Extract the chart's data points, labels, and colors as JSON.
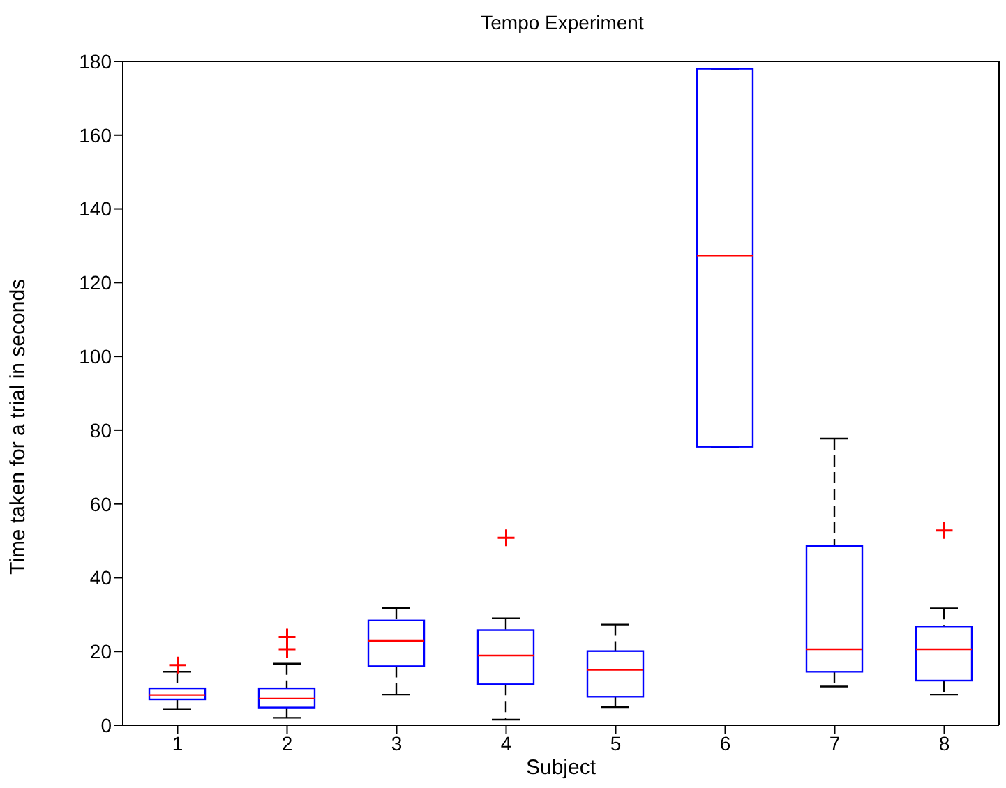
{
  "chart_data": {
    "type": "box",
    "title": "Tempo Experiment",
    "xlabel": "Subject",
    "ylabel": "Time taken for a trial in seconds",
    "categories": [
      "1",
      "2",
      "3",
      "4",
      "5",
      "6",
      "7",
      "8"
    ],
    "color": "#0000ff",
    "line_style": "dashed",
    "marker": "cross",
    "ylim": [
      0,
      180
    ],
    "yticks": [
      0,
      20,
      40,
      60,
      80,
      100,
      120,
      140,
      160,
      180
    ],
    "grid": false,
    "legend": false,
    "boxes": [
      {
        "low": 4.4,
        "q1": 7,
        "median": 8.2,
        "q3": 10,
        "high": 14.5,
        "outliers": [
          16.3
        ]
      },
      {
        "low": 2,
        "q1": 4.8,
        "median": 7.2,
        "q3": 10,
        "high": 16.7,
        "outliers": [
          20.6,
          23.9
        ]
      },
      {
        "low": 8.3,
        "q1": 16,
        "median": 22.9,
        "q3": 28.4,
        "high": 31.8
      },
      {
        "low": 1.5,
        "q1": 11.1,
        "median": 18.9,
        "q3": 25.8,
        "high": 29,
        "outliers": [
          50.8
        ]
      },
      {
        "low": 4.9,
        "q1": 7.7,
        "median": 15,
        "q3": 20.1,
        "high": 27.3
      },
      {
        "low": 75.5,
        "q1": 75.5,
        "median": 127.4,
        "q3": 178,
        "high": 178
      },
      {
        "low": 10.5,
        "q1": 14.5,
        "median": 20.6,
        "q3": 48.6,
        "high": 77.7
      },
      {
        "low": 8.3,
        "q1": 12.1,
        "median": 20.6,
        "q3": 26.8,
        "high": 31.7,
        "outliers": [
          52.8
        ]
      }
    ]
  }
}
